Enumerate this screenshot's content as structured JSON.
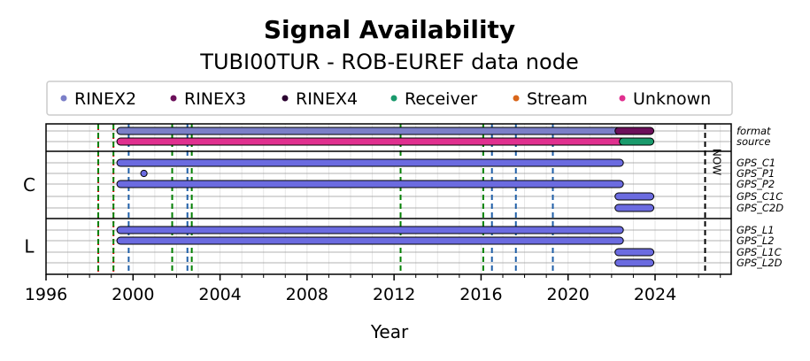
{
  "chart_data": {
    "type": "gantt",
    "title": "Signal Availability",
    "subtitle": "TUBI00TUR - ROB-EUREF data node",
    "xlabel": "Year",
    "xlim": [
      1996,
      2027.5
    ],
    "xticks": [
      1996,
      2000,
      2004,
      2008,
      2012,
      2016,
      2020,
      2024
    ],
    "legend": {
      "placement": "top-center",
      "entries": [
        {
          "label": "RINEX2",
          "color": "#7b7fc8"
        },
        {
          "label": "RINEX3",
          "color": "#6b0f5a"
        },
        {
          "label": "RINEX4",
          "color": "#2a0030"
        },
        {
          "label": "Receiver",
          "color": "#1a9a6c"
        },
        {
          "label": "Stream",
          "color": "#d9661a"
        },
        {
          "label": "Unknown",
          "color": "#e0308f"
        }
      ]
    },
    "groups": [
      {
        "label": "",
        "rows": [
          "format",
          "source"
        ]
      },
      {
        "label": "C",
        "rows": [
          "GPS_C1",
          "GPS_P1",
          "GPS_P2",
          "GPS_C1C",
          "GPS_C2D"
        ]
      },
      {
        "label": "L",
        "rows": [
          "GPS_L1",
          "GPS_L2",
          "GPS_L1C",
          "GPS_L2D"
        ]
      }
    ],
    "segments": [
      {
        "row": "format",
        "start": 1999.4,
        "end": 2022.3,
        "color": "#7b7fc8"
      },
      {
        "row": "format",
        "start": 2022.3,
        "end": 2023.8,
        "color": "#6b0f5a"
      },
      {
        "row": "source",
        "start": 1999.4,
        "end": 2022.5,
        "color": "#e0308f"
      },
      {
        "row": "source",
        "start": 2022.5,
        "end": 2023.8,
        "color": "#1a9a6c"
      },
      {
        "row": "GPS_C1",
        "start": 1999.4,
        "end": 2022.4,
        "color": "#6b6be0"
      },
      {
        "row": "GPS_P1",
        "start": 2000.5,
        "end": 2000.5,
        "color": "#6b6be0"
      },
      {
        "row": "GPS_P2",
        "start": 1999.4,
        "end": 2022.4,
        "color": "#6b6be0"
      },
      {
        "row": "GPS_C1C",
        "start": 2022.3,
        "end": 2023.8,
        "color": "#6b6be0"
      },
      {
        "row": "GPS_C2D",
        "start": 2022.3,
        "end": 2023.8,
        "color": "#6b6be0"
      },
      {
        "row": "GPS_L1",
        "start": 1999.4,
        "end": 2022.4,
        "color": "#6b6be0"
      },
      {
        "row": "GPS_L2",
        "start": 1999.4,
        "end": 2022.4,
        "color": "#6b6be0"
      },
      {
        "row": "GPS_L1C",
        "start": 2022.3,
        "end": 2023.8,
        "color": "#6b6be0"
      },
      {
        "row": "GPS_L2D",
        "start": 2022.3,
        "end": 2023.8,
        "color": "#6b6be0"
      }
    ],
    "vlines": [
      {
        "x": 1998.4,
        "color": "#e00000",
        "style": "dotted"
      },
      {
        "x": 1998.4,
        "color": "#008000",
        "style": "dashed"
      },
      {
        "x": 1999.1,
        "color": "#e00000",
        "style": "dotted"
      },
      {
        "x": 1999.1,
        "color": "#008000",
        "style": "dashed"
      },
      {
        "x": 1999.8,
        "color": "#1f5fa8",
        "style": "dashed"
      },
      {
        "x": 2001.8,
        "color": "#008000",
        "style": "dashed"
      },
      {
        "x": 2002.5,
        "color": "#1f5fa8",
        "style": "dashed"
      },
      {
        "x": 2002.7,
        "color": "#008000",
        "style": "dashed"
      },
      {
        "x": 2012.3,
        "color": "#008000",
        "style": "dashed"
      },
      {
        "x": 2016.1,
        "color": "#008000",
        "style": "dashed"
      },
      {
        "x": 2016.5,
        "color": "#1f5fa8",
        "style": "dashed"
      },
      {
        "x": 2017.6,
        "color": "#1f5fa8",
        "style": "dashed"
      },
      {
        "x": 2019.3,
        "color": "#1f5fa8",
        "style": "dashed"
      },
      {
        "x": 2026.3,
        "color": "#000000",
        "style": "dashed"
      }
    ],
    "now_label": "NOW",
    "grid": true
  }
}
